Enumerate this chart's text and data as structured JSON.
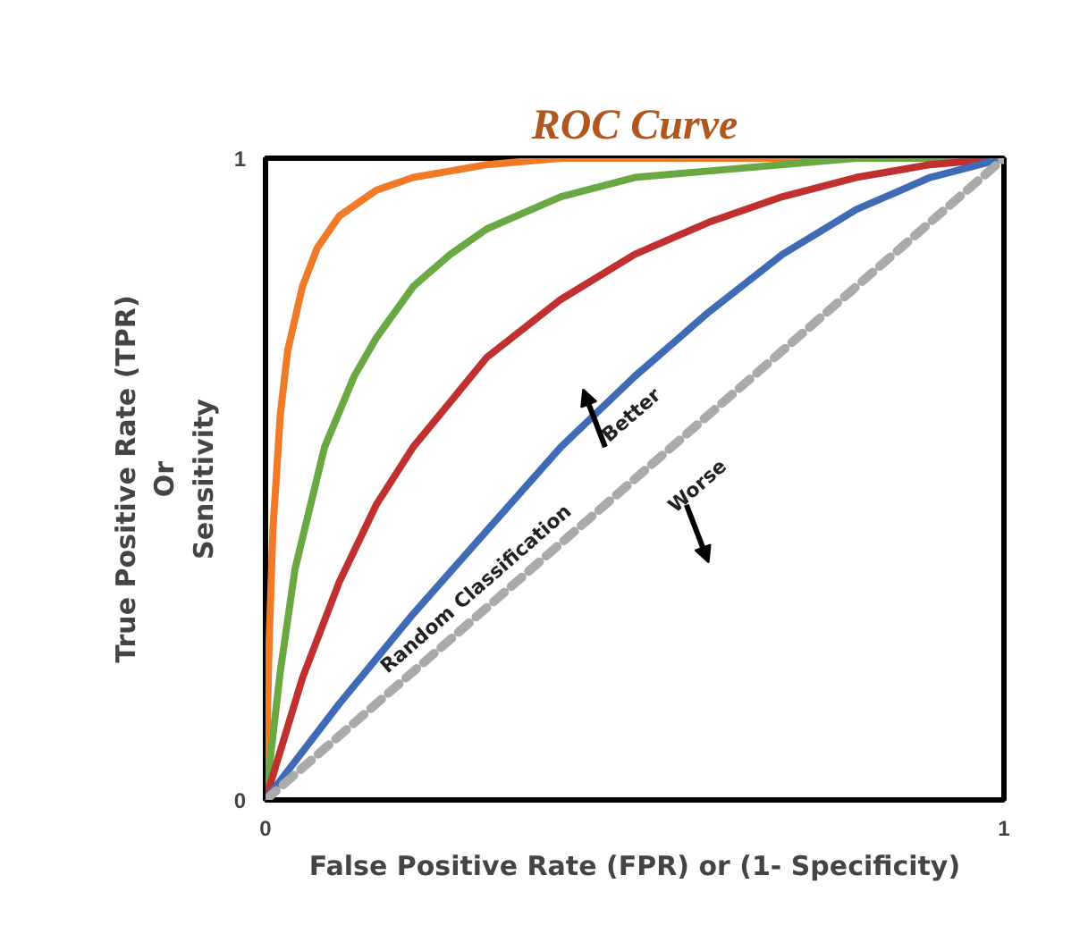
{
  "chart_data": {
    "type": "line",
    "title": "ROC Curve",
    "xlabel": "False Positive Rate (FPR) or (1- Specificity)",
    "ylabel": "True Positive Rate (TPR)\nOr\nSensitivity",
    "xlim": [
      0,
      1
    ],
    "ylim": [
      0,
      1
    ],
    "xticks": [
      0,
      1
    ],
    "yticks": [
      0,
      1
    ],
    "marker": "none",
    "series": [
      {
        "color": "#f07a28",
        "x": [
          0,
          0.005,
          0.01,
          0.02,
          0.03,
          0.05,
          0.07,
          0.1,
          0.15,
          0.2,
          0.3,
          0.4,
          0.5,
          0.7,
          1
        ],
        "values": [
          0,
          0.25,
          0.42,
          0.6,
          0.7,
          0.8,
          0.86,
          0.91,
          0.95,
          0.97,
          0.99,
          1,
          1,
          1,
          1
        ]
      },
      {
        "color": "#6aa843",
        "x": [
          0,
          0.02,
          0.04,
          0.08,
          0.12,
          0.15,
          0.2,
          0.25,
          0.3,
          0.4,
          0.5,
          0.6,
          0.8,
          1
        ],
        "values": [
          0,
          0.2,
          0.36,
          0.55,
          0.66,
          0.72,
          0.8,
          0.85,
          0.89,
          0.94,
          0.97,
          0.98,
          1,
          1
        ]
      },
      {
        "color": "#c0302e",
        "x": [
          0,
          0.05,
          0.1,
          0.15,
          0.2,
          0.3,
          0.4,
          0.5,
          0.6,
          0.7,
          0.8,
          0.9,
          1
        ],
        "values": [
          0,
          0.19,
          0.34,
          0.46,
          0.55,
          0.69,
          0.78,
          0.85,
          0.9,
          0.94,
          0.97,
          0.99,
          1
        ]
      },
      {
        "color": "#3f6bb5",
        "x": [
          0,
          0.1,
          0.2,
          0.3,
          0.4,
          0.5,
          0.6,
          0.7,
          0.8,
          0.9,
          1
        ],
        "values": [
          0,
          0.15,
          0.29,
          0.42,
          0.55,
          0.66,
          0.76,
          0.85,
          0.92,
          0.97,
          1
        ]
      },
      {
        "color": "#aaaaaa",
        "line_style": "dashed",
        "x": [
          0,
          1
        ],
        "values": [
          0,
          1
        ]
      }
    ],
    "annotations": [
      "Random Classification",
      "Better",
      "Worse"
    ]
  }
}
